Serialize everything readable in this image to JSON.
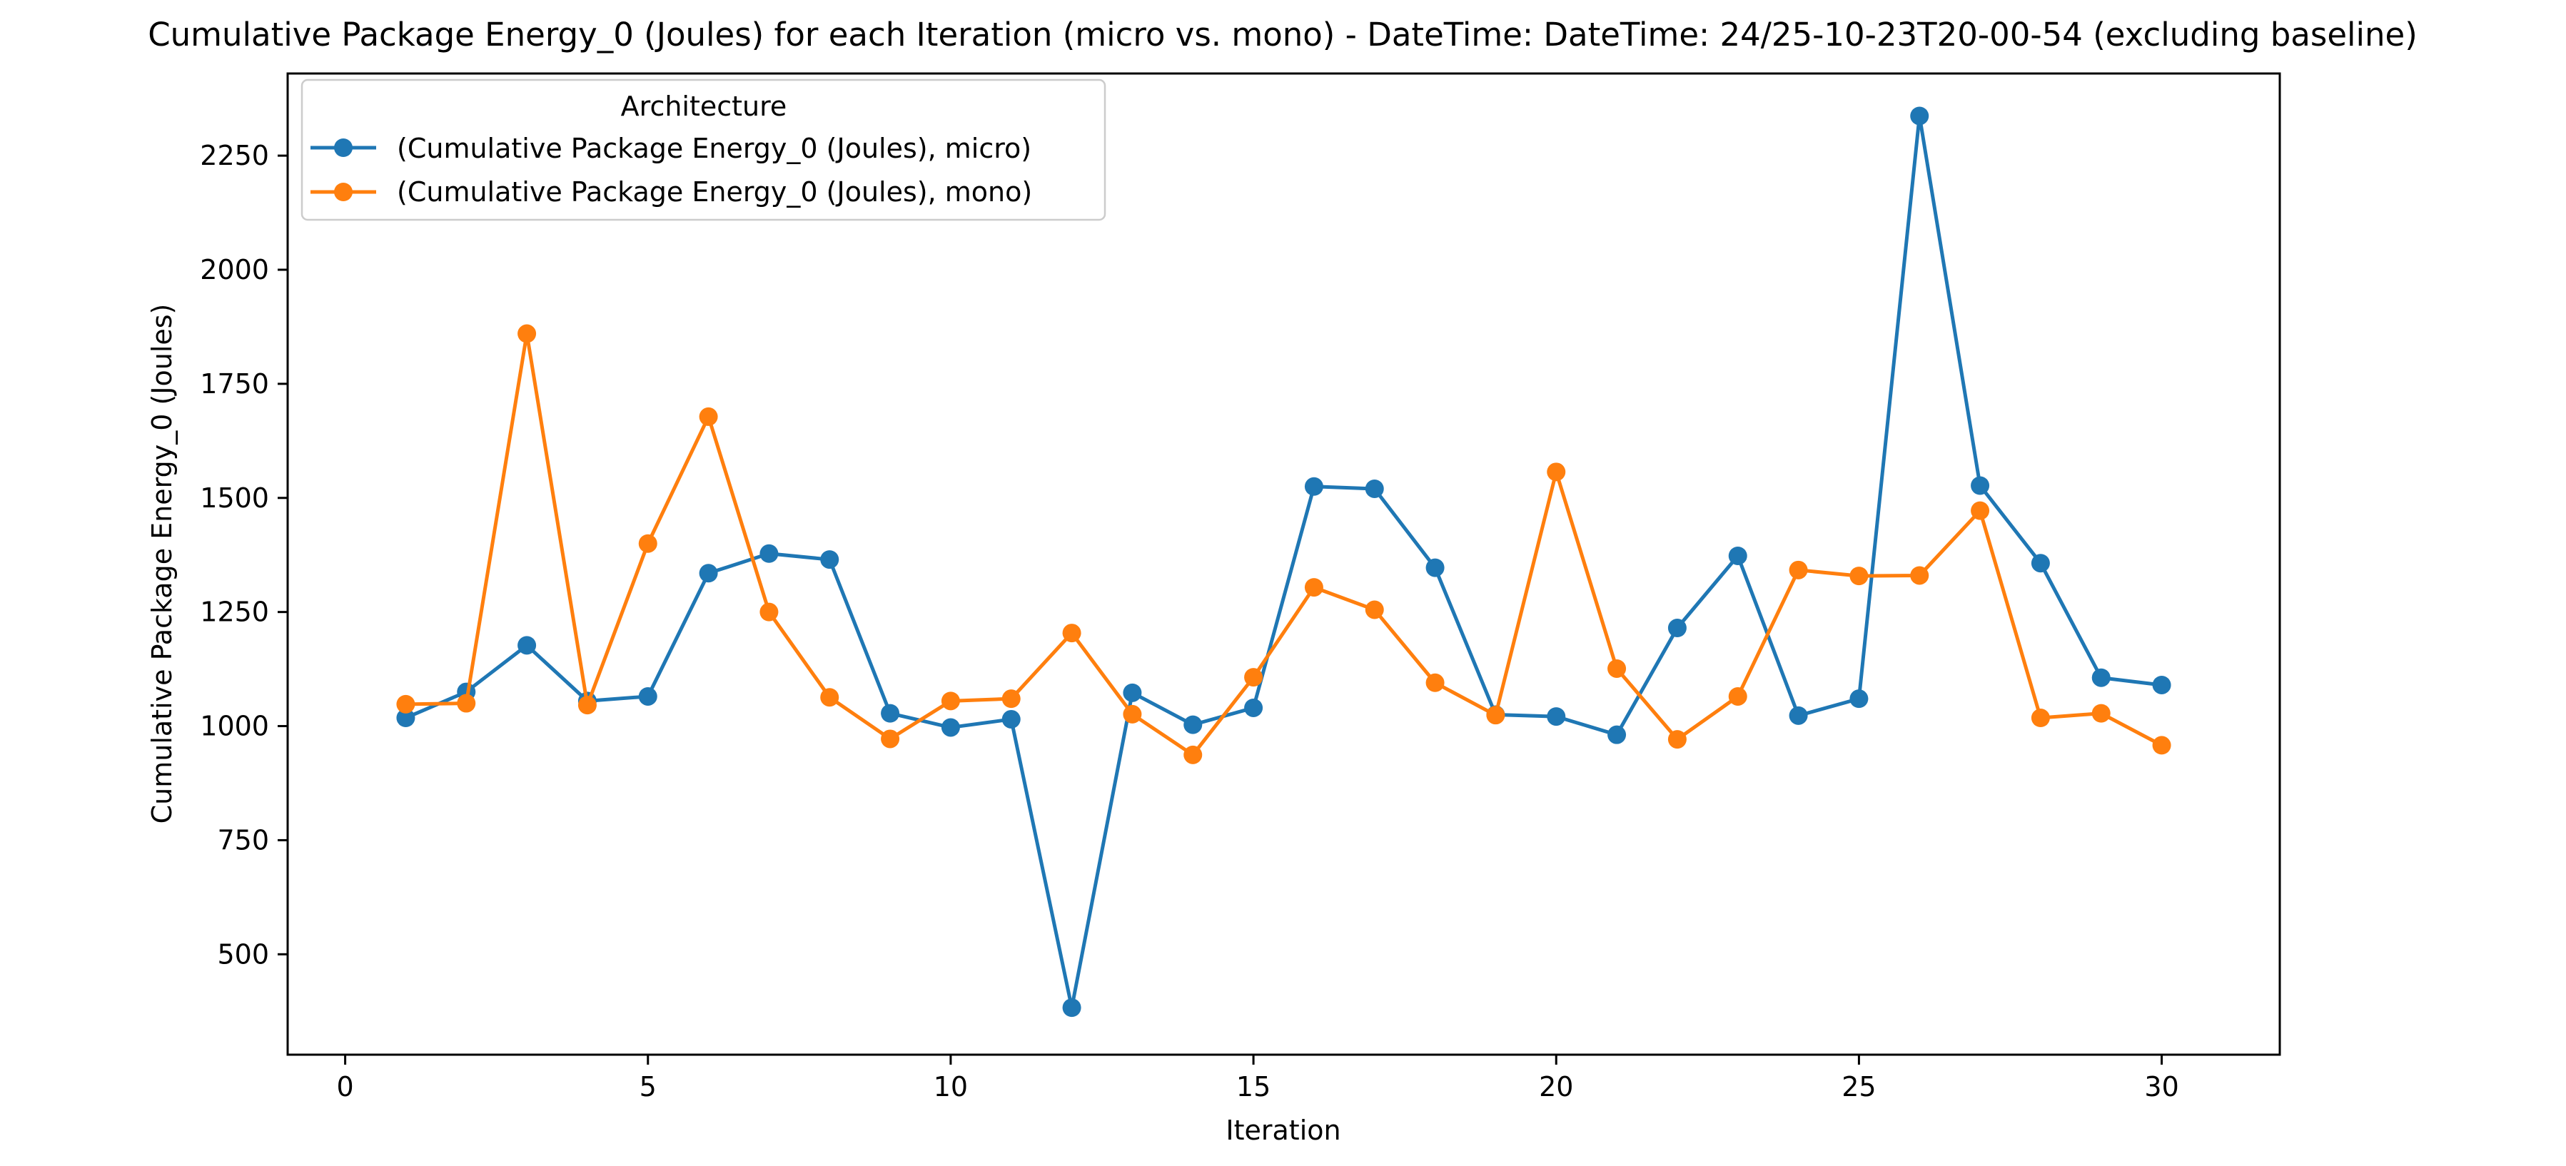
{
  "chart_data": {
    "type": "line",
    "title": "Cumulative Package Energy_0 (Joules) for each Iteration (micro vs. mono) - DateTime: DateTime: 24/25-10-23T20-00-54 (excluding baseline)",
    "xlabel": "Iteration",
    "ylabel": "Cumulative Package Energy_0 (Joules)",
    "xlim": [
      -0.95,
      31.95
    ],
    "ylim": [
      280,
      2430
    ],
    "xticks": [
      0,
      5,
      10,
      15,
      20,
      25,
      30
    ],
    "yticks": [
      500,
      750,
      1000,
      1250,
      1500,
      1750,
      2000,
      2250
    ],
    "grid": false,
    "legend": {
      "title": "Architecture",
      "placement": "upper-left"
    },
    "x": [
      1,
      2,
      3,
      4,
      5,
      6,
      7,
      8,
      9,
      10,
      11,
      12,
      13,
      14,
      15,
      16,
      17,
      18,
      19,
      20,
      21,
      22,
      23,
      24,
      25,
      26,
      27,
      28,
      29,
      30
    ],
    "series": [
      {
        "name": "(Cumulative Package Energy_0 (Joules), micro)",
        "color": "#1f77b4",
        "values": [
          1018,
          1075,
          1177,
          1055,
          1065,
          1335,
          1378,
          1365,
          1028,
          997,
          1015,
          383,
          1073,
          1003,
          1040,
          1525,
          1520,
          1347,
          1025,
          1021,
          981,
          1215,
          1373,
          1023,
          1060,
          2337,
          1527,
          1357,
          1106,
          1090
        ]
      },
      {
        "name": "(Cumulative Package Energy_0 (Joules), mono)",
        "color": "#ff7f0e",
        "values": [
          1048,
          1050,
          1860,
          1046,
          1400,
          1678,
          1250,
          1063,
          972,
          1055,
          1060,
          1204,
          1026,
          937,
          1107,
          1304,
          1255,
          1095,
          1024,
          1557,
          1126,
          971,
          1065,
          1342,
          1329,
          1330,
          1472,
          1018,
          1028,
          958
        ]
      }
    ]
  }
}
